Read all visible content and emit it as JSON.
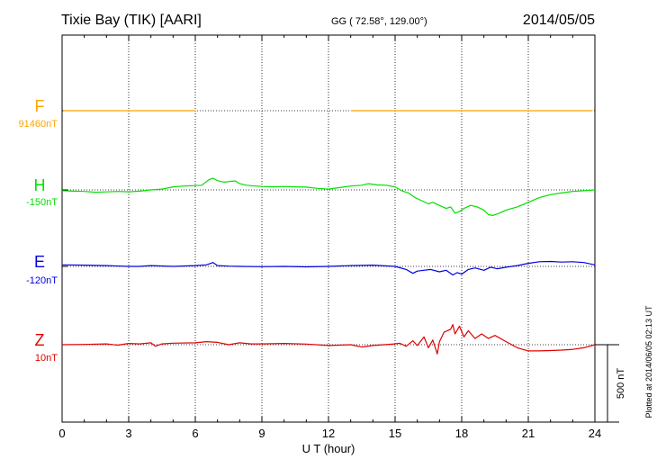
{
  "header": {
    "station": "Tixie Bay (TIK)  [AARI]",
    "coords": "GG ( 72.58°, 129.00°)",
    "date": "2014/05/05"
  },
  "footer": {
    "plotted": "Plotted at 2014/06/05 02:13 UT"
  },
  "chart_data": {
    "type": "line",
    "xlabel": "U T (hour)",
    "xlim": [
      0,
      24
    ],
    "xticks": [
      "0",
      "3",
      "6",
      "9",
      "12",
      "15",
      "18",
      "21",
      "24"
    ],
    "grid": true,
    "scale_bar": "500 nT",
    "series": [
      {
        "name": "F",
        "baseline": "91460nT",
        "color": "#ffa500",
        "segments": [
          [
            [
              0.05,
              0
            ],
            [
              1,
              0
            ],
            [
              2,
              0
            ],
            [
              3,
              0
            ],
            [
              4,
              0
            ],
            [
              5,
              0
            ],
            [
              6,
              0
            ]
          ],
          [
            [
              13,
              0
            ],
            [
              14,
              0
            ],
            [
              15,
              0
            ],
            [
              16,
              0
            ],
            [
              17,
              0
            ],
            [
              18,
              0
            ],
            [
              19,
              0
            ],
            [
              20,
              0
            ],
            [
              21,
              0
            ],
            [
              22,
              0
            ],
            [
              23,
              0
            ],
            [
              23.9,
              0
            ]
          ]
        ]
      },
      {
        "name": "H",
        "baseline": "-150nT",
        "color": "#00e000",
        "segments": [
          [
            [
              0,
              -5
            ],
            [
              0.5,
              -8
            ],
            [
              1,
              -10
            ],
            [
              1.5,
              -15
            ],
            [
              2,
              -13
            ],
            [
              2.5,
              -10
            ],
            [
              3,
              -12
            ],
            [
              3.5,
              -8
            ],
            [
              4,
              0
            ],
            [
              4.5,
              5
            ],
            [
              5,
              20
            ],
            [
              5.5,
              25
            ],
            [
              6,
              28
            ],
            [
              6.3,
              30
            ],
            [
              6.6,
              65
            ],
            [
              6.8,
              75
            ],
            [
              7,
              60
            ],
            [
              7.3,
              50
            ],
            [
              7.6,
              55
            ],
            [
              7.8,
              58
            ],
            [
              8,
              40
            ],
            [
              8.3,
              30
            ],
            [
              8.7,
              25
            ],
            [
              9,
              22
            ],
            [
              9.5,
              20
            ],
            [
              10,
              22
            ],
            [
              10.5,
              20
            ],
            [
              11,
              18
            ],
            [
              11.5,
              10
            ],
            [
              12,
              5
            ],
            [
              12.5,
              15
            ],
            [
              13,
              25
            ],
            [
              13.5,
              30
            ],
            [
              13.8,
              40
            ],
            [
              14.2,
              32
            ],
            [
              14.6,
              30
            ],
            [
              15,
              20
            ],
            [
              15.3,
              -5
            ],
            [
              15.6,
              -20
            ],
            [
              15.9,
              -50
            ],
            [
              16.2,
              -70
            ],
            [
              16.5,
              -90
            ],
            [
              16.7,
              -80
            ],
            [
              17,
              -100
            ],
            [
              17.3,
              -120
            ],
            [
              17.5,
              -110
            ],
            [
              17.7,
              -150
            ],
            [
              17.9,
              -140
            ],
            [
              18.1,
              -120
            ],
            [
              18.4,
              -100
            ],
            [
              18.7,
              -110
            ],
            [
              19,
              -130
            ],
            [
              19.2,
              -160
            ],
            [
              19.4,
              -165
            ],
            [
              19.7,
              -150
            ],
            [
              20,
              -130
            ],
            [
              20.5,
              -110
            ],
            [
              21,
              -80
            ],
            [
              21.5,
              -50
            ],
            [
              22,
              -30
            ],
            [
              22.5,
              -20
            ],
            [
              23,
              -10
            ],
            [
              23.5,
              -5
            ],
            [
              24,
              0
            ]
          ]
        ]
      },
      {
        "name": "E",
        "baseline": "-120nT",
        "color": "#0000e0",
        "segments": [
          [
            [
              0,
              10
            ],
            [
              1,
              8
            ],
            [
              2,
              5
            ],
            [
              3,
              0
            ],
            [
              3.5,
              0
            ],
            [
              4,
              5
            ],
            [
              5,
              0
            ],
            [
              6,
              5
            ],
            [
              6.5,
              10
            ],
            [
              6.8,
              25
            ],
            [
              7,
              5
            ],
            [
              7.5,
              2
            ],
            [
              8,
              0
            ],
            [
              9,
              -2
            ],
            [
              10,
              0
            ],
            [
              11,
              -3
            ],
            [
              12,
              0
            ],
            [
              13,
              5
            ],
            [
              14,
              8
            ],
            [
              15,
              0
            ],
            [
              15.5,
              -20
            ],
            [
              15.8,
              -45
            ],
            [
              16,
              -30
            ],
            [
              16.3,
              -25
            ],
            [
              16.6,
              -20
            ],
            [
              17,
              -35
            ],
            [
              17.3,
              -25
            ],
            [
              17.6,
              -55
            ],
            [
              17.8,
              -40
            ],
            [
              18,
              -50
            ],
            [
              18.3,
              -20
            ],
            [
              18.6,
              -10
            ],
            [
              19,
              -25
            ],
            [
              19.3,
              -5
            ],
            [
              19.6,
              -15
            ],
            [
              20,
              -5
            ],
            [
              20.5,
              5
            ],
            [
              21,
              20
            ],
            [
              21.5,
              30
            ],
            [
              22,
              32
            ],
            [
              22.5,
              28
            ],
            [
              23,
              30
            ],
            [
              23.5,
              25
            ],
            [
              24,
              10
            ]
          ]
        ]
      },
      {
        "name": "Z",
        "baseline": "10nT",
        "color": "#e00000",
        "segments": [
          [
            [
              0,
              0
            ],
            [
              1,
              2
            ],
            [
              2,
              5
            ],
            [
              2.5,
              -3
            ],
            [
              3,
              8
            ],
            [
              3.5,
              5
            ],
            [
              4,
              12
            ],
            [
              4.2,
              -10
            ],
            [
              4.5,
              5
            ],
            [
              5,
              10
            ],
            [
              6,
              12
            ],
            [
              6.5,
              20
            ],
            [
              7,
              15
            ],
            [
              7.5,
              0
            ],
            [
              8,
              12
            ],
            [
              8.5,
              5
            ],
            [
              9,
              5
            ],
            [
              10,
              8
            ],
            [
              11,
              4
            ],
            [
              12,
              -5
            ],
            [
              12.5,
              -3
            ],
            [
              13,
              0
            ],
            [
              13.5,
              -15
            ],
            [
              14,
              -5
            ],
            [
              15,
              5
            ],
            [
              15.2,
              10
            ],
            [
              15.5,
              -10
            ],
            [
              15.8,
              25
            ],
            [
              16,
              -5
            ],
            [
              16.3,
              50
            ],
            [
              16.5,
              -20
            ],
            [
              16.7,
              30
            ],
            [
              16.9,
              -60
            ],
            [
              17,
              20
            ],
            [
              17.2,
              80
            ],
            [
              17.5,
              100
            ],
            [
              17.6,
              130
            ],
            [
              17.7,
              70
            ],
            [
              17.9,
              120
            ],
            [
              18.1,
              50
            ],
            [
              18.3,
              90
            ],
            [
              18.6,
              40
            ],
            [
              18.9,
              70
            ],
            [
              19.2,
              40
            ],
            [
              19.5,
              60
            ],
            [
              20,
              20
            ],
            [
              20.5,
              -20
            ],
            [
              21,
              -40
            ],
            [
              21.5,
              -40
            ],
            [
              22,
              -38
            ],
            [
              22.5,
              -35
            ],
            [
              23,
              -30
            ],
            [
              23.5,
              -20
            ],
            [
              24,
              0
            ]
          ]
        ]
      }
    ]
  }
}
